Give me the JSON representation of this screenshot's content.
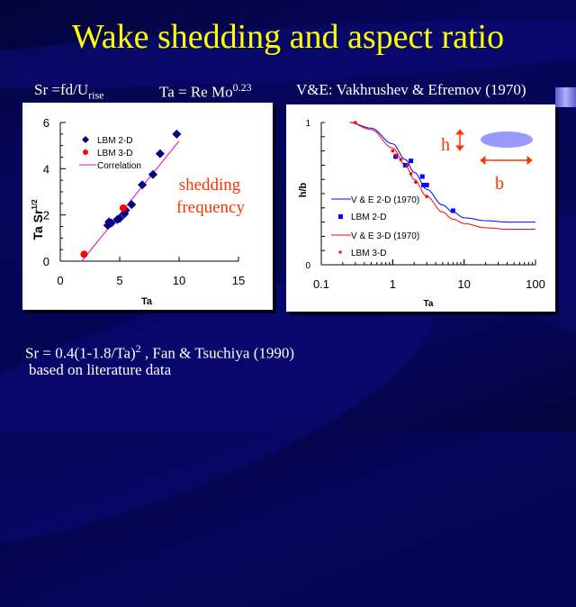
{
  "title": "Wake shedding and aspect ratio",
  "subtitles": {
    "sr_def_main": "Sr =fd/U",
    "sr_def_sub": "rise",
    "ta_def_main": "Ta = Re Mo",
    "ta_def_sup": "0.23",
    "ve_def": "V&E: Vakhrushev & Efremov (1970)"
  },
  "footer": {
    "line1_main": "Sr = 0.4(1-1.8/Ta)",
    "line1_sup": "2",
    "line1_rest": " , Fan & Tsuchiya (1990)",
    "line2": "based on literature data"
  },
  "colors": {
    "title": "#ffff00",
    "lbm2d_left": "#000080",
    "lbm3d": "#ff0000",
    "correlation": "#e000e0",
    "ve2d": "#0000ff",
    "ve3d": "#ff0000",
    "annotation": "#ff3300",
    "ellipse": "#9999ff"
  },
  "chart_data": [
    {
      "type": "scatter",
      "title": "",
      "xlabel": "Ta",
      "ylabel": "Ta Sr^1/2",
      "ylabel_main": "Ta Sr",
      "ylabel_sup": "1/2",
      "xlim": [
        0,
        15
      ],
      "ylim": [
        0,
        6
      ],
      "xticks": [
        "0",
        "5",
        "10",
        "15"
      ],
      "yticks": [
        "0",
        "2",
        "4",
        "6"
      ],
      "legend_position": "top-left",
      "annotation": [
        "shedding",
        "frequency"
      ],
      "series": [
        {
          "name": "LBM 2-D",
          "marker": "diamond",
          "x": [
            4.0,
            4.1,
            4.3,
            4.8,
            5.0,
            5.4,
            5.5,
            6.0,
            6.9,
            7.8,
            8.4,
            9.8
          ],
          "y": [
            1.55,
            1.7,
            1.65,
            1.8,
            1.85,
            2.05,
            2.2,
            2.45,
            3.3,
            3.75,
            4.65,
            5.5
          ]
        },
        {
          "name": "LBM 3-D",
          "marker": "circle",
          "x": [
            2.0,
            5.3
          ],
          "y": [
            0.3,
            2.3
          ]
        },
        {
          "name": "Correlation",
          "marker": "line",
          "x": [
            1.8,
            10.0
          ],
          "y": [
            0.0,
            5.2
          ]
        }
      ]
    },
    {
      "type": "line",
      "title": "",
      "xlabel": "Ta",
      "ylabel": "h/b",
      "xscale": "log",
      "xlim": [
        0.1,
        100
      ],
      "ylim": [
        0,
        1
      ],
      "xticks": [
        "0.1",
        "1",
        "10",
        "100"
      ],
      "yticks": [
        "0",
        "1"
      ],
      "legend_position": "bottom-left",
      "annotation_h": "h",
      "annotation_b": "b",
      "series": [
        {
          "name": "V & E 2-D (1970)",
          "marker": "line",
          "x": [
            0.25,
            0.5,
            1,
            1.5,
            2,
            3,
            5,
            7,
            10,
            20,
            40,
            100
          ],
          "y": [
            1.0,
            0.96,
            0.85,
            0.74,
            0.65,
            0.53,
            0.42,
            0.37,
            0.33,
            0.31,
            0.3,
            0.3
          ]
        },
        {
          "name": "LBM 2-D",
          "marker": "square",
          "x": [
            1.1,
            1.5,
            1.8,
            2.6,
            2.7,
            3.0,
            7.0
          ],
          "y": [
            0.76,
            0.7,
            0.73,
            0.62,
            0.56,
            0.56,
            0.38
          ]
        },
        {
          "name": "V & E 3-D (1970)",
          "marker": "line",
          "x": [
            0.25,
            0.5,
            1,
            1.5,
            2,
            3,
            5,
            7,
            10,
            20,
            40,
            100
          ],
          "y": [
            1.0,
            0.95,
            0.82,
            0.7,
            0.6,
            0.48,
            0.37,
            0.32,
            0.29,
            0.26,
            0.25,
            0.25
          ]
        },
        {
          "name": "LBM 3-D",
          "marker": "dot",
          "x": [
            0.3,
            1.0,
            1.1,
            1.3,
            1.6,
            1.8,
            2.1,
            3.0
          ],
          "y": [
            1.0,
            0.8,
            0.77,
            0.74,
            0.7,
            0.64,
            0.58,
            0.48
          ]
        }
      ]
    }
  ]
}
